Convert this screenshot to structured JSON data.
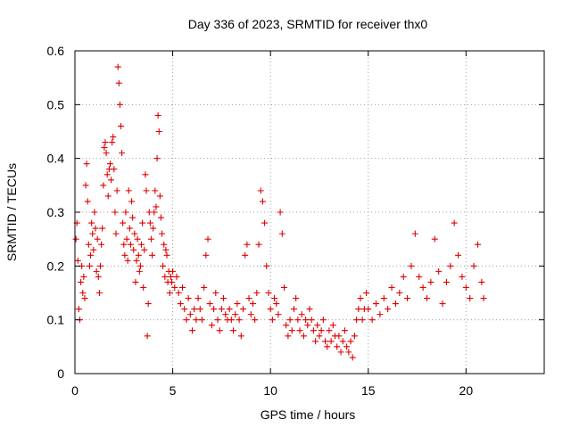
{
  "chart_data": {
    "type": "scatter",
    "title": "Day 336 of 2023, SRMTID for receiver thx0",
    "xlabel": "GPS time / hours",
    "ylabel": "SRMTID / TECUs",
    "xlim": [
      0,
      24
    ],
    "ylim": [
      0,
      0.6
    ],
    "x_ticks": [
      0,
      5,
      10,
      15,
      20
    ],
    "x_tick_labels": [
      "0",
      "5",
      "10",
      "15",
      "20"
    ],
    "y_ticks": [
      0,
      0.1,
      0.2,
      0.3,
      0.4,
      0.5,
      0.6
    ],
    "y_tick_labels": [
      "0",
      "0.1",
      "0.2",
      "0.3",
      "0.4",
      "0.5",
      "0.6"
    ],
    "grid": true,
    "marker": "+",
    "series": [
      {
        "name": "thx0",
        "color": "#e00000",
        "points": [
          [
            0.05,
            0.25
          ],
          [
            0.1,
            0.28
          ],
          [
            0.15,
            0.21
          ],
          [
            0.2,
            0.12
          ],
          [
            0.25,
            0.1
          ],
          [
            0.3,
            0.17
          ],
          [
            0.35,
            0.2
          ],
          [
            0.4,
            0.15
          ],
          [
            0.45,
            0.18
          ],
          [
            0.5,
            0.14
          ],
          [
            0.55,
            0.35
          ],
          [
            0.6,
            0.39
          ],
          [
            0.65,
            0.32
          ],
          [
            0.7,
            0.24
          ],
          [
            0.75,
            0.2
          ],
          [
            0.8,
            0.22
          ],
          [
            0.85,
            0.28
          ],
          [
            0.9,
            0.26
          ],
          [
            0.95,
            0.23
          ],
          [
            1.0,
            0.3
          ],
          [
            1.05,
            0.27
          ],
          [
            1.1,
            0.19
          ],
          [
            1.15,
            0.25
          ],
          [
            1.2,
            0.18
          ],
          [
            1.25,
            0.15
          ],
          [
            1.3,
            0.2
          ],
          [
            1.35,
            0.24
          ],
          [
            1.4,
            0.27
          ],
          [
            1.45,
            0.35
          ],
          [
            1.5,
            0.42
          ],
          [
            1.55,
            0.43
          ],
          [
            1.6,
            0.41
          ],
          [
            1.65,
            0.37
          ],
          [
            1.7,
            0.33
          ],
          [
            1.75,
            0.38
          ],
          [
            1.8,
            0.39
          ],
          [
            1.85,
            0.36
          ],
          [
            1.9,
            0.43
          ],
          [
            1.95,
            0.44
          ],
          [
            2.0,
            0.38
          ],
          [
            2.05,
            0.3
          ],
          [
            2.1,
            0.26
          ],
          [
            2.15,
            0.34
          ],
          [
            2.2,
            0.57
          ],
          [
            2.25,
            0.54
          ],
          [
            2.3,
            0.5
          ],
          [
            2.35,
            0.46
          ],
          [
            2.4,
            0.41
          ],
          [
            2.45,
            0.28
          ],
          [
            2.5,
            0.24
          ],
          [
            2.55,
            0.22
          ],
          [
            2.6,
            0.3
          ],
          [
            2.65,
            0.25
          ],
          [
            2.7,
            0.21
          ],
          [
            2.75,
            0.34
          ],
          [
            2.8,
            0.27
          ],
          [
            2.85,
            0.24
          ],
          [
            2.9,
            0.32
          ],
          [
            2.95,
            0.29
          ],
          [
            3.0,
            0.23
          ],
          [
            3.05,
            0.26
          ],
          [
            3.1,
            0.17
          ],
          [
            3.15,
            0.21
          ],
          [
            3.2,
            0.25
          ],
          [
            3.25,
            0.22
          ],
          [
            3.3,
            0.19
          ],
          [
            3.35,
            0.2
          ],
          [
            3.4,
            0.24
          ],
          [
            3.45,
            0.28
          ],
          [
            3.5,
            0.16
          ],
          [
            3.55,
            0.23
          ],
          [
            3.6,
            0.37
          ],
          [
            3.65,
            0.34
          ],
          [
            3.7,
            0.07
          ],
          [
            3.75,
            0.13
          ],
          [
            3.8,
            0.3
          ],
          [
            3.85,
            0.28
          ],
          [
            3.9,
            0.25
          ],
          [
            3.95,
            0.22
          ],
          [
            4.0,
            0.27
          ],
          [
            4.05,
            0.3
          ],
          [
            4.1,
            0.34
          ],
          [
            4.15,
            0.31
          ],
          [
            4.2,
            0.4
          ],
          [
            4.25,
            0.48
          ],
          [
            4.3,
            0.45
          ],
          [
            4.35,
            0.33
          ],
          [
            4.4,
            0.29
          ],
          [
            4.45,
            0.26
          ],
          [
            4.5,
            0.2
          ],
          [
            4.55,
            0.24
          ],
          [
            4.6,
            0.18
          ],
          [
            4.65,
            0.23
          ],
          [
            4.7,
            0.22
          ],
          [
            4.75,
            0.17
          ],
          [
            4.8,
            0.19
          ],
          [
            4.85,
            0.15
          ],
          [
            4.9,
            0.18
          ],
          [
            4.95,
            0.17
          ],
          [
            5.0,
            0.19
          ],
          [
            5.1,
            0.16
          ],
          [
            5.2,
            0.18
          ],
          [
            5.3,
            0.15
          ],
          [
            5.4,
            0.13
          ],
          [
            5.5,
            0.16
          ],
          [
            5.6,
            0.12
          ],
          [
            5.7,
            0.1
          ],
          [
            5.8,
            0.14
          ],
          [
            5.9,
            0.11
          ],
          [
            6.0,
            0.08
          ],
          [
            6.1,
            0.12
          ],
          [
            6.2,
            0.1
          ],
          [
            6.3,
            0.14
          ],
          [
            6.4,
            0.12
          ],
          [
            6.5,
            0.1
          ],
          [
            6.6,
            0.16
          ],
          [
            6.7,
            0.22
          ],
          [
            6.8,
            0.25
          ],
          [
            6.9,
            0.13
          ],
          [
            7.0,
            0.09
          ],
          [
            7.1,
            0.12
          ],
          [
            7.2,
            0.15
          ],
          [
            7.3,
            0.1
          ],
          [
            7.4,
            0.08
          ],
          [
            7.5,
            0.12
          ],
          [
            7.6,
            0.14
          ],
          [
            7.7,
            0.11
          ],
          [
            7.8,
            0.1
          ],
          [
            7.9,
            0.12
          ],
          [
            8.0,
            0.1
          ],
          [
            8.1,
            0.08
          ],
          [
            8.2,
            0.11
          ],
          [
            8.3,
            0.13
          ],
          [
            8.4,
            0.1
          ],
          [
            8.5,
            0.07
          ],
          [
            8.6,
            0.12
          ],
          [
            8.7,
            0.22
          ],
          [
            8.8,
            0.24
          ],
          [
            8.9,
            0.14
          ],
          [
            9.0,
            0.11
          ],
          [
            9.1,
            0.13
          ],
          [
            9.2,
            0.1
          ],
          [
            9.3,
            0.15
          ],
          [
            9.4,
            0.24
          ],
          [
            9.5,
            0.34
          ],
          [
            9.6,
            0.32
          ],
          [
            9.7,
            0.28
          ],
          [
            9.8,
            0.2
          ],
          [
            9.9,
            0.15
          ],
          [
            10.0,
            0.12
          ],
          [
            10.1,
            0.1
          ],
          [
            10.2,
            0.14
          ],
          [
            10.3,
            0.13
          ],
          [
            10.4,
            0.11
          ],
          [
            10.5,
            0.3
          ],
          [
            10.6,
            0.26
          ],
          [
            10.7,
            0.16
          ],
          [
            10.8,
            0.09
          ],
          [
            10.9,
            0.07
          ],
          [
            11.0,
            0.1
          ],
          [
            11.1,
            0.08
          ],
          [
            11.2,
            0.12
          ],
          [
            11.3,
            0.14
          ],
          [
            11.4,
            0.1
          ],
          [
            11.5,
            0.08
          ],
          [
            11.6,
            0.11
          ],
          [
            11.7,
            0.07
          ],
          [
            11.8,
            0.1
          ],
          [
            11.9,
            0.09
          ],
          [
            12.0,
            0.12
          ],
          [
            12.1,
            0.1
          ],
          [
            12.2,
            0.08
          ],
          [
            12.3,
            0.06
          ],
          [
            12.4,
            0.09
          ],
          [
            12.5,
            0.07
          ],
          [
            12.6,
            0.08
          ],
          [
            12.7,
            0.1
          ],
          [
            12.8,
            0.06
          ],
          [
            12.9,
            0.05
          ],
          [
            13.0,
            0.08
          ],
          [
            13.1,
            0.06
          ],
          [
            13.2,
            0.09
          ],
          [
            13.3,
            0.07
          ],
          [
            13.4,
            0.05
          ],
          [
            13.5,
            0.07
          ],
          [
            13.6,
            0.04
          ],
          [
            13.7,
            0.06
          ],
          [
            13.8,
            0.08
          ],
          [
            13.9,
            0.05
          ],
          [
            14.0,
            0.04
          ],
          [
            14.1,
            0.06
          ],
          [
            14.2,
            0.03
          ],
          [
            14.3,
            0.07
          ],
          [
            14.4,
            0.1
          ],
          [
            14.5,
            0.12
          ],
          [
            14.6,
            0.14
          ],
          [
            14.7,
            0.1
          ],
          [
            14.8,
            0.12
          ],
          [
            14.9,
            0.15
          ],
          [
            15.0,
            0.12
          ],
          [
            15.2,
            0.1
          ],
          [
            15.4,
            0.13
          ],
          [
            15.6,
            0.11
          ],
          [
            15.8,
            0.14
          ],
          [
            16.0,
            0.12
          ],
          [
            16.2,
            0.16
          ],
          [
            16.4,
            0.13
          ],
          [
            16.6,
            0.15
          ],
          [
            16.8,
            0.18
          ],
          [
            17.0,
            0.14
          ],
          [
            17.2,
            0.2
          ],
          [
            17.4,
            0.26
          ],
          [
            17.6,
            0.18
          ],
          [
            17.8,
            0.16
          ],
          [
            18.0,
            0.14
          ],
          [
            18.2,
            0.17
          ],
          [
            18.4,
            0.25
          ],
          [
            18.6,
            0.19
          ],
          [
            18.8,
            0.13
          ],
          [
            19.0,
            0.17
          ],
          [
            19.2,
            0.2
          ],
          [
            19.4,
            0.28
          ],
          [
            19.6,
            0.22
          ],
          [
            19.8,
            0.18
          ],
          [
            20.0,
            0.16
          ],
          [
            20.2,
            0.14
          ],
          [
            20.4,
            0.2
          ],
          [
            20.6,
            0.24
          ],
          [
            20.8,
            0.17
          ],
          [
            20.9,
            0.14
          ]
        ]
      }
    ]
  }
}
